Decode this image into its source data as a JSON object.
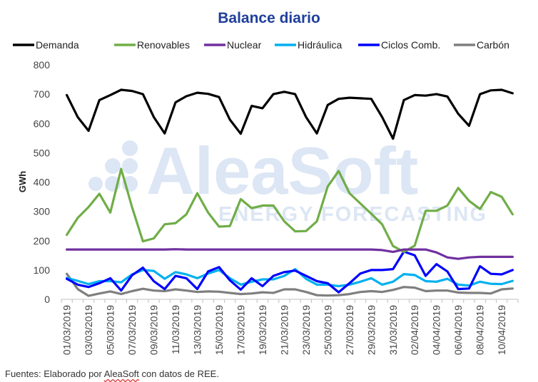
{
  "chart_data": {
    "type": "line",
    "title": "Balance diario",
    "xlabel": "",
    "ylabel": "GWh",
    "ylim": [
      0,
      800
    ],
    "yticks": [
      0,
      100,
      200,
      300,
      400,
      500,
      600,
      700,
      800
    ],
    "grid": false,
    "legend_position": "top",
    "x": [
      "01/03/2019",
      "02/03/2019",
      "03/03/2019",
      "04/03/2019",
      "05/03/2019",
      "06/03/2019",
      "07/03/2019",
      "08/03/2019",
      "09/03/2019",
      "10/03/2019",
      "11/03/2019",
      "12/03/2019",
      "13/03/2019",
      "14/03/2019",
      "15/03/2019",
      "16/03/2019",
      "17/03/2019",
      "18/03/2019",
      "19/03/2019",
      "20/03/2019",
      "21/03/2019",
      "22/03/2019",
      "23/03/2019",
      "24/03/2019",
      "25/03/2019",
      "26/03/2019",
      "27/03/2019",
      "28/03/2019",
      "29/03/2019",
      "30/03/2019",
      "31/03/2019",
      "01/04/2019",
      "02/04/2019",
      "03/04/2019",
      "04/04/2019",
      "05/04/2019",
      "06/04/2019",
      "07/04/2019",
      "08/04/2019",
      "09/04/2019",
      "10/04/2019",
      "11/04/2019"
    ],
    "x_tick_labels": [
      "01/03/2019",
      "03/03/2019",
      "05/03/2019",
      "07/03/2019",
      "09/03/2019",
      "11/03/2019",
      "13/03/2019",
      "15/03/2019",
      "17/03/2019",
      "19/03/2019",
      "21/03/2019",
      "23/03/2019",
      "25/03/2019",
      "27/03/2019",
      "29/03/2019",
      "31/03/2019",
      "02/04/2019",
      "04/04/2019",
      "06/04/2019",
      "08/04/2019",
      "10/04/2019"
    ],
    "series": [
      {
        "name": "Demanda",
        "color": "#000000",
        "values": [
          697,
          622,
          575,
          680,
          697,
          715,
          711,
          700,
          622,
          566,
          672,
          693,
          705,
          701,
          690,
          613,
          565,
          660,
          652,
          700,
          708,
          700,
          622,
          566,
          663,
          684,
          688,
          686,
          684,
          622,
          548,
          680,
          697,
          695,
          700,
          692,
          633,
          592,
          700,
          713,
          715,
          703
        ]
      },
      {
        "name": "Renovables",
        "color": "#70ad47",
        "values": [
          220,
          278,
          315,
          360,
          296,
          445,
          315,
          198,
          208,
          256,
          260,
          290,
          362,
          296,
          248,
          250,
          342,
          311,
          320,
          320,
          266,
          232,
          233,
          266,
          385,
          438,
          362,
          327,
          292,
          256,
          182,
          162,
          183,
          302,
          302,
          320,
          380,
          336,
          308,
          366,
          350,
          290
        ]
      },
      {
        "name": "Nuclear",
        "color": "#7030a0",
        "values": [
          170,
          170,
          170,
          170,
          170,
          170,
          170,
          170,
          170,
          170,
          171,
          170,
          170,
          170,
          170,
          170,
          170,
          170,
          170,
          170,
          170,
          170,
          170,
          170,
          170,
          170,
          170,
          170,
          170,
          168,
          162,
          170,
          170,
          170,
          160,
          143,
          138,
          143,
          145,
          145,
          145,
          145
        ]
      },
      {
        "name": "Hidráulica",
        "color": "#00b0f0",
        "values": [
          73,
          63,
          52,
          62,
          62,
          58,
          85,
          100,
          97,
          70,
          93,
          85,
          72,
          88,
          100,
          72,
          50,
          60,
          68,
          68,
          80,
          103,
          70,
          50,
          50,
          45,
          50,
          60,
          72,
          50,
          60,
          86,
          83,
          62,
          60,
          70,
          50,
          47,
          60,
          53,
          52,
          63
        ]
      },
      {
        "name": "Ciclos Comb.",
        "color": "#0000ff",
        "values": [
          70,
          50,
          42,
          55,
          72,
          30,
          82,
          108,
          62,
          35,
          80,
          72,
          35,
          95,
          110,
          65,
          33,
          72,
          45,
          80,
          93,
          98,
          80,
          62,
          55,
          24,
          55,
          88,
          100,
          100,
          103,
          163,
          150,
          80,
          120,
          95,
          35,
          37,
          113,
          87,
          85,
          100
        ]
      },
      {
        "name": "Carbón",
        "color": "#7f7f7f",
        "values": [
          87,
          35,
          12,
          20,
          27,
          18,
          28,
          36,
          30,
          28,
          34,
          30,
          25,
          27,
          26,
          22,
          18,
          20,
          24,
          22,
          34,
          34,
          25,
          14,
          13,
          14,
          18,
          25,
          28,
          25,
          32,
          42,
          40,
          28,
          30,
          30,
          23,
          22,
          22,
          20,
          34,
          37
        ]
      }
    ]
  },
  "watermark": {
    "line1": "AleaSoft",
    "line2": "ENERGY FORECASTING"
  },
  "footer": {
    "prefix": "Fuentes: Elaborado por ",
    "brand": "AleaSoft",
    "suffix": " con datos de REE."
  }
}
